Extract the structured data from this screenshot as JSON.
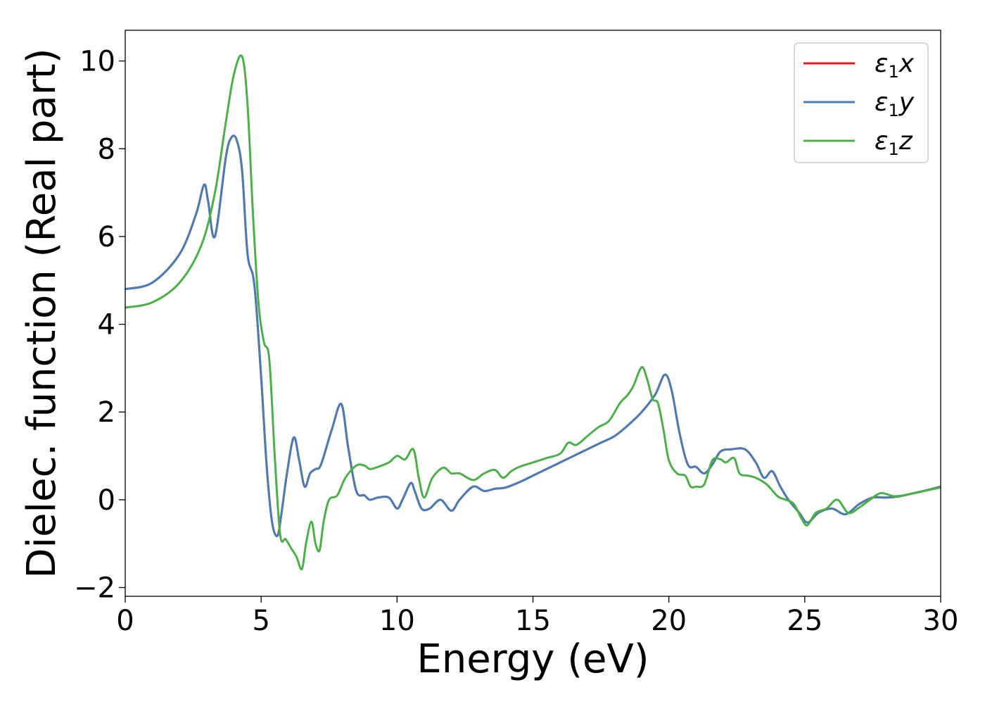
{
  "chart_data": {
    "type": "line",
    "title": "",
    "xlabel": "Energy (eV)",
    "ylabel": "Dielec. function (Real part)",
    "xlim": [
      0,
      30
    ],
    "ylim": [
      -2.2,
      10.7
    ],
    "xticks": [
      0,
      5,
      10,
      15,
      20,
      25,
      30
    ],
    "xtick_labels": [
      "0",
      "5",
      "10",
      "15",
      "20",
      "25",
      "30"
    ],
    "yticks": [
      -2,
      0,
      2,
      4,
      6,
      8,
      10
    ],
    "ytick_labels": [
      "−2",
      "0",
      "2",
      "4",
      "6",
      "8",
      "10"
    ],
    "grid": false,
    "legend": {
      "placement": "top-right",
      "entries": [
        {
          "series": 0,
          "base": "ε",
          "sub": "1",
          "tail": "x"
        },
        {
          "series": 1,
          "base": "ε",
          "sub": "1",
          "tail": "y"
        },
        {
          "series": 2,
          "base": "ε",
          "sub": "1",
          "tail": "z"
        }
      ]
    },
    "series": [
      {
        "name": "ε1x",
        "color": "#e41a1c",
        "x": [
          0,
          1,
          2,
          2.6,
          2.9,
          3.05,
          3.3,
          3.7,
          3.9,
          4.1,
          4.3,
          4.5,
          4.75,
          5.0,
          5.2,
          5.4,
          5.6,
          5.75,
          5.95,
          6.2,
          6.4,
          6.6,
          6.8,
          7.0,
          7.2,
          7.6,
          7.95,
          8.2,
          8.5,
          8.8,
          9.0,
          9.3,
          9.7,
          10.0,
          10.2,
          10.5,
          10.65,
          10.9,
          11.2,
          11.6,
          12.0,
          12.3,
          12.8,
          13.2,
          13.6,
          14.0,
          14.5,
          15.0,
          15.5,
          16.0,
          16.5,
          17.0,
          17.5,
          18.0,
          18.5,
          19.0,
          19.5,
          19.85,
          20.1,
          20.4,
          20.7,
          21.0,
          21.3,
          21.6,
          21.9,
          22.3,
          22.8,
          23.2,
          23.5,
          23.8,
          24.1,
          24.4,
          24.8,
          25.1,
          25.5,
          26.0,
          26.5,
          27.0,
          27.5,
          28.0,
          28.5,
          29.0,
          29.5,
          30.0
        ],
        "y": [
          4.8,
          4.95,
          5.6,
          6.5,
          7.18,
          6.8,
          6.0,
          7.8,
          8.25,
          8.2,
          7.5,
          5.6,
          4.9,
          2.8,
          0.8,
          -0.5,
          -0.82,
          -0.3,
          0.6,
          1.42,
          0.9,
          0.3,
          0.6,
          0.7,
          0.8,
          1.6,
          2.18,
          1.2,
          0.2,
          0.1,
          0.0,
          0.05,
          0.05,
          -0.2,
          0.0,
          0.38,
          0.2,
          -0.2,
          -0.2,
          0.0,
          -0.25,
          0.0,
          0.3,
          0.2,
          0.25,
          0.28,
          0.4,
          0.55,
          0.7,
          0.85,
          1.0,
          1.15,
          1.3,
          1.45,
          1.7,
          2.0,
          2.4,
          2.85,
          2.5,
          1.5,
          0.8,
          0.75,
          0.6,
          0.8,
          1.1,
          1.15,
          1.15,
          0.85,
          0.5,
          0.65,
          0.3,
          0.0,
          -0.3,
          -0.52,
          -0.3,
          -0.2,
          -0.33,
          -0.1,
          0.05,
          0.05,
          0.08,
          0.15,
          0.22,
          0.3
        ]
      },
      {
        "name": "ε1y",
        "color": "#4a7db4",
        "x": [
          0,
          1,
          2,
          2.6,
          2.9,
          3.05,
          3.3,
          3.7,
          3.9,
          4.1,
          4.3,
          4.5,
          4.75,
          5.0,
          5.2,
          5.4,
          5.6,
          5.75,
          5.95,
          6.2,
          6.4,
          6.6,
          6.8,
          7.0,
          7.2,
          7.6,
          7.95,
          8.2,
          8.5,
          8.8,
          9.0,
          9.3,
          9.7,
          10.0,
          10.2,
          10.5,
          10.65,
          10.9,
          11.2,
          11.6,
          12.0,
          12.3,
          12.8,
          13.2,
          13.6,
          14.0,
          14.5,
          15.0,
          15.5,
          16.0,
          16.5,
          17.0,
          17.5,
          18.0,
          18.5,
          19.0,
          19.5,
          19.85,
          20.1,
          20.4,
          20.7,
          21.0,
          21.3,
          21.6,
          21.9,
          22.3,
          22.8,
          23.2,
          23.5,
          23.8,
          24.1,
          24.4,
          24.8,
          25.1,
          25.5,
          26.0,
          26.5,
          27.0,
          27.5,
          28.0,
          28.5,
          29.0,
          29.5,
          30.0
        ],
        "y": [
          4.8,
          4.95,
          5.6,
          6.5,
          7.18,
          6.8,
          6.0,
          7.8,
          8.25,
          8.2,
          7.5,
          5.6,
          4.9,
          2.8,
          0.8,
          -0.5,
          -0.82,
          -0.3,
          0.6,
          1.42,
          0.9,
          0.3,
          0.6,
          0.7,
          0.8,
          1.6,
          2.18,
          1.2,
          0.2,
          0.1,
          0.0,
          0.05,
          0.05,
          -0.2,
          0.0,
          0.38,
          0.2,
          -0.2,
          -0.2,
          0.0,
          -0.25,
          0.0,
          0.3,
          0.2,
          0.25,
          0.28,
          0.4,
          0.55,
          0.7,
          0.85,
          1.0,
          1.15,
          1.3,
          1.45,
          1.7,
          2.0,
          2.4,
          2.85,
          2.5,
          1.5,
          0.8,
          0.75,
          0.6,
          0.8,
          1.1,
          1.15,
          1.15,
          0.85,
          0.5,
          0.65,
          0.3,
          0.0,
          -0.3,
          -0.52,
          -0.3,
          -0.2,
          -0.33,
          -0.1,
          0.05,
          0.05,
          0.08,
          0.15,
          0.22,
          0.3
        ]
      },
      {
        "name": "ε1z",
        "color": "#4daf4a",
        "x": [
          0,
          1,
          2,
          2.8,
          3.3,
          3.7,
          4.0,
          4.3,
          4.5,
          4.7,
          4.9,
          5.1,
          5.3,
          5.5,
          5.7,
          5.9,
          6.1,
          6.3,
          6.5,
          6.65,
          6.85,
          7.0,
          7.15,
          7.3,
          7.5,
          7.8,
          8.1,
          8.5,
          8.8,
          9.0,
          9.3,
          9.7,
          10.0,
          10.3,
          10.6,
          10.8,
          11.0,
          11.3,
          11.7,
          12.0,
          12.3,
          12.8,
          13.2,
          13.6,
          13.9,
          14.2,
          14.5,
          15.0,
          15.5,
          16.0,
          16.3,
          16.6,
          17.0,
          17.4,
          17.8,
          18.2,
          18.5,
          18.7,
          19.0,
          19.2,
          19.4,
          19.6,
          19.8,
          20.0,
          20.3,
          20.6,
          20.8,
          21.0,
          21.3,
          21.6,
          21.9,
          22.1,
          22.4,
          22.6,
          22.9,
          23.2,
          23.6,
          24.0,
          24.3,
          24.6,
          24.9,
          25.1,
          25.4,
          25.8,
          26.2,
          26.6,
          27.0,
          27.4,
          27.8,
          28.3,
          28.8,
          29.4,
          30.0
        ],
        "y": [
          4.38,
          4.5,
          4.95,
          5.8,
          7.0,
          8.6,
          9.7,
          10.1,
          9.0,
          6.5,
          4.5,
          3.6,
          3.2,
          1.0,
          -0.8,
          -0.9,
          -1.1,
          -1.3,
          -1.58,
          -1.0,
          -0.5,
          -1.0,
          -1.15,
          -0.5,
          0.0,
          0.1,
          0.5,
          0.78,
          0.78,
          0.7,
          0.75,
          0.85,
          1.0,
          0.92,
          1.15,
          0.5,
          0.05,
          0.5,
          0.73,
          0.6,
          0.6,
          0.45,
          0.6,
          0.68,
          0.5,
          0.65,
          0.75,
          0.85,
          0.95,
          1.05,
          1.3,
          1.25,
          1.45,
          1.65,
          1.8,
          2.2,
          2.4,
          2.6,
          3.02,
          2.75,
          2.3,
          2.2,
          1.6,
          0.9,
          0.6,
          0.55,
          0.3,
          0.3,
          0.35,
          0.9,
          0.92,
          0.85,
          0.95,
          0.6,
          0.55,
          0.5,
          0.35,
          0.08,
          0.0,
          -0.1,
          -0.45,
          -0.58,
          -0.3,
          -0.2,
          0.0,
          -0.3,
          -0.18,
          0.0,
          0.15,
          0.08,
          0.12,
          0.2,
          0.28
        ]
      }
    ]
  }
}
